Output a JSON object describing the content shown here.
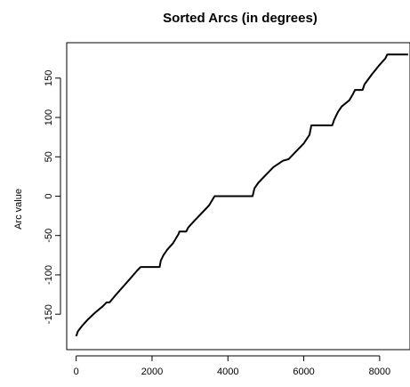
{
  "chart_data": {
    "type": "line",
    "title": "Sorted Arcs (in degrees)",
    "xlabel": "",
    "ylabel": "Arc value",
    "xlim": [
      -250,
      8800
    ],
    "ylim": [
      -195,
      195
    ],
    "x_ticks": [
      0,
      2000,
      4000,
      6000,
      8000
    ],
    "y_ticks": [
      -150,
      -100,
      -50,
      0,
      50,
      100,
      150
    ],
    "grid": false,
    "series": [
      {
        "x": [
          0,
          40,
          150,
          300,
          500,
          700,
          800,
          880,
          1000,
          1200,
          1400,
          1600,
          1700,
          1900,
          2200,
          2230,
          2300,
          2400,
          2550,
          2700,
          2720,
          2900,
          2950,
          3100,
          3300,
          3500,
          3650,
          3700,
          4000,
          4400,
          4650,
          4700,
          4800,
          5000,
          5200,
          5450,
          5600,
          5800,
          6000,
          6150,
          6200,
          6500,
          6750,
          6800,
          6900,
          7000,
          7200,
          7300,
          7350,
          7550,
          7600,
          7800,
          8000,
          8150,
          8200,
          8500,
          8750
        ],
        "y": [
          -178,
          -172,
          -165,
          -157,
          -148,
          -140,
          -135,
          -135,
          -128,
          -117,
          -106,
          -95,
          -90,
          -90,
          -90,
          -82,
          -75,
          -68,
          -60,
          -48,
          -45,
          -45,
          -40,
          -32,
          -22,
          -12,
          0,
          0,
          0,
          0,
          0,
          10,
          17,
          27,
          37,
          45,
          47,
          57,
          67,
          78,
          90,
          90,
          90,
          97,
          107,
          114,
          122,
          130,
          135,
          135,
          142,
          155,
          167,
          175,
          180,
          180,
          180
        ]
      }
    ]
  }
}
